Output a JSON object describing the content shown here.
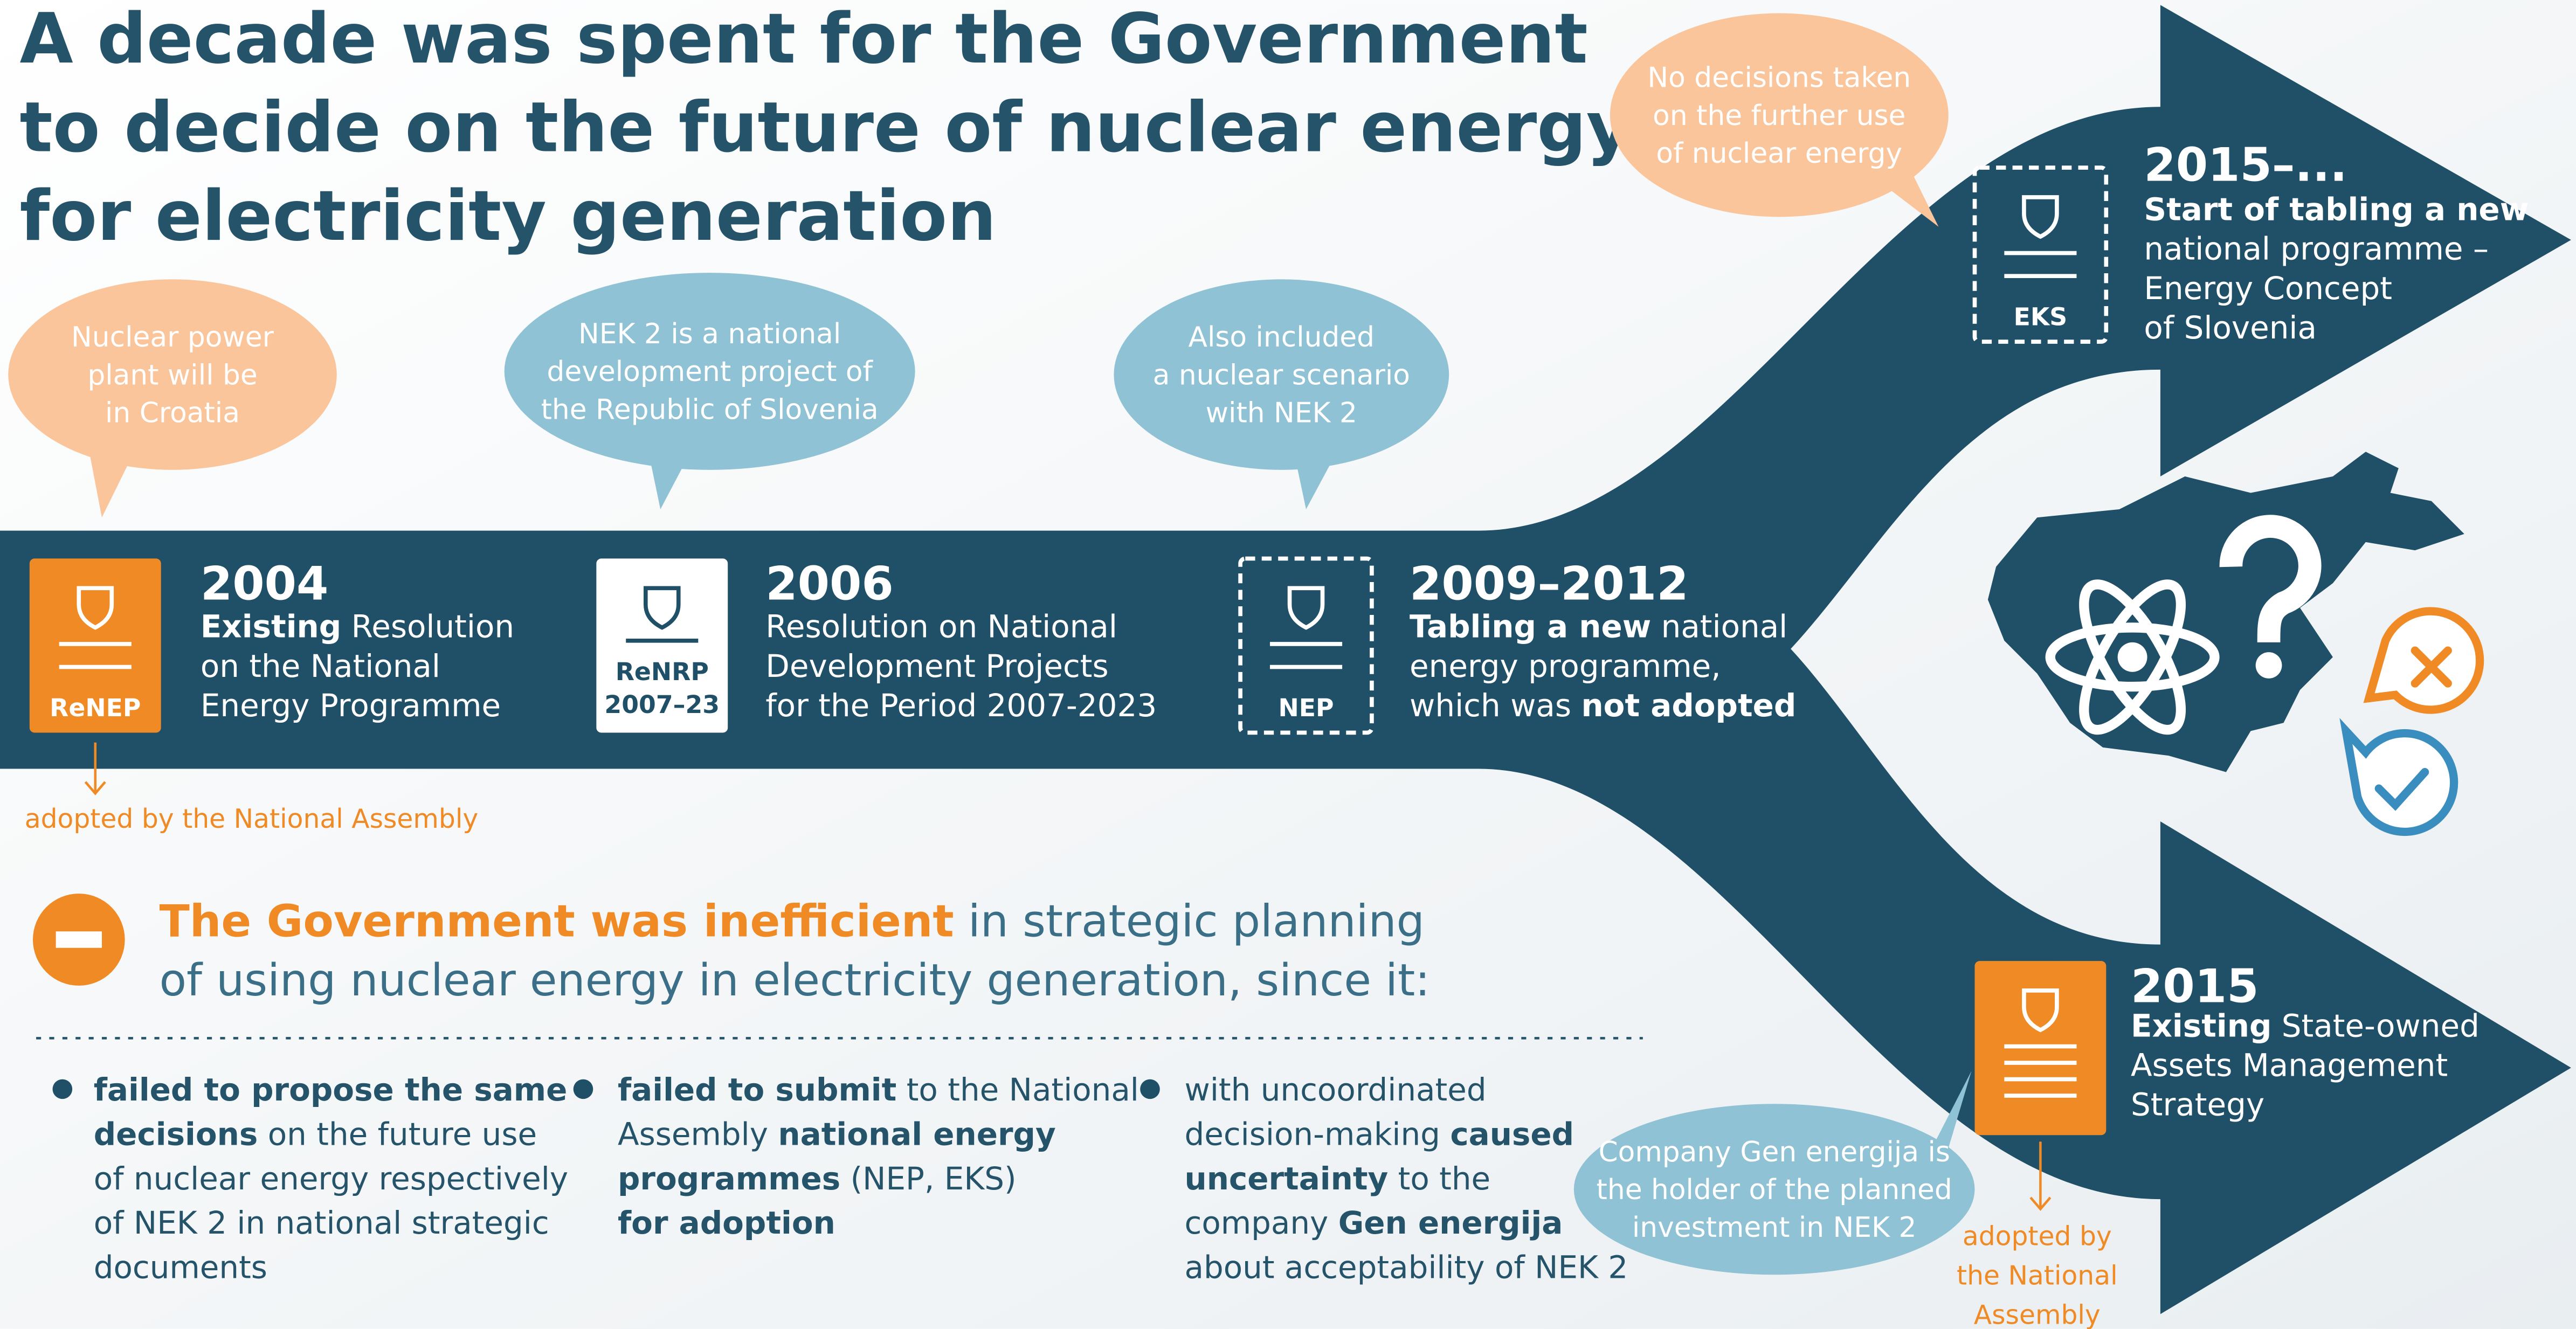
{
  "title": [
    "A decade was spent for the Government",
    "to decide on the future of nuclear energy",
    "for electricity generation"
  ],
  "bubbles": [
    {
      "lines": [
        "Nuclear power",
        "plant will be",
        "in Croatia"
      ],
      "color": "#fbc59b"
    },
    {
      "lines": [
        "NEK 2 is a national",
        "development project of",
        "the Republic of Slovenia"
      ],
      "color": "#8fc2d4"
    },
    {
      "lines": [
        "Also included",
        "a nuclear scenario",
        "with NEK 2"
      ],
      "color": "#8fc2d4"
    },
    {
      "lines": [
        "No decisions taken",
        "on the further use",
        "of nuclear energy"
      ],
      "color": "#fbc59b"
    },
    {
      "lines": [
        "Company Gen energija is",
        "the holder of the planned",
        "investment in NEK 2"
      ],
      "color": "#8fc2d4"
    }
  ],
  "events": [
    {
      "year": "2004",
      "badge": {
        "labels": [
          "ReNEP"
        ],
        "fill": "#f08a24"
      },
      "lines": [
        [
          {
            "bold": "Existing"
          },
          " Resolution"
        ],
        [
          "on the National"
        ],
        [
          "Energy Programme"
        ]
      ],
      "note": [
        "adopted by the National Assembly"
      ]
    },
    {
      "year": "2006",
      "badge": {
        "labels": [
          "ReNRP",
          "2007–23"
        ],
        "fill": "#ffffff"
      },
      "lines": [
        [
          "Resolution on National"
        ],
        [
          "Development Projects"
        ],
        [
          "for the Period 2007-2023"
        ]
      ]
    },
    {
      "year": "2009–2012",
      "badge": {
        "labels": [
          "NEP"
        ],
        "outline": "dashed"
      },
      "lines": [
        [
          {
            "bold": "Tabling a new"
          },
          " national"
        ],
        [
          "energy programme,"
        ],
        [
          "which was ",
          {
            "bold": "not adopted"
          }
        ]
      ]
    },
    {
      "year": "2015–...",
      "badge": {
        "labels": [
          "EKS"
        ],
        "outline": "dashed"
      },
      "lines": [
        [
          {
            "bold": "Start of tabling a new"
          }
        ],
        [
          "national programme –"
        ],
        [
          "Energy Concept"
        ],
        [
          "of Slovenia"
        ]
      ]
    },
    {
      "year": "2015",
      "badge": {
        "labels": [],
        "fill": "#f08a24"
      },
      "lines": [
        [
          {
            "bold": "Existing"
          },
          " State-owned"
        ],
        [
          "Assets Management"
        ],
        [
          "Strategy"
        ]
      ],
      "note": [
        "adopted by",
        "the National",
        "Assembly"
      ]
    }
  ],
  "finding": {
    "lines": [
      [
        {
          "bold": "The Government was inefficient"
        },
        " in strategic planning"
      ],
      [
        "of using nuclear energy in electricity generation, since it:"
      ]
    ]
  },
  "reasons": [
    [
      [
        {
          "bold": "failed to propose the same"
        }
      ],
      [
        {
          "bold": "decisions"
        },
        " on the future use"
      ],
      [
        "of nuclear energy respectively"
      ],
      [
        "of NEK 2 in national strategic"
      ],
      [
        "documents"
      ]
    ],
    [
      [
        {
          "bold": "failed to submit"
        },
        " to the National"
      ],
      [
        "Assembly ",
        {
          "bold": "national energy"
        }
      ],
      [
        {
          "bold": "programmes"
        },
        " (NEP, EKS)"
      ],
      [
        {
          "bold": "for adoption"
        }
      ]
    ],
    [
      [
        "with uncoordinated"
      ],
      [
        "decision-making ",
        {
          "bold": "caused"
        }
      ],
      [
        {
          "bold": "uncertainty"
        },
        " to the"
      ],
      [
        "company ",
        {
          "bold": "Gen energija"
        }
      ],
      [
        "about acceptability of NEK 2"
      ]
    ]
  ]
}
